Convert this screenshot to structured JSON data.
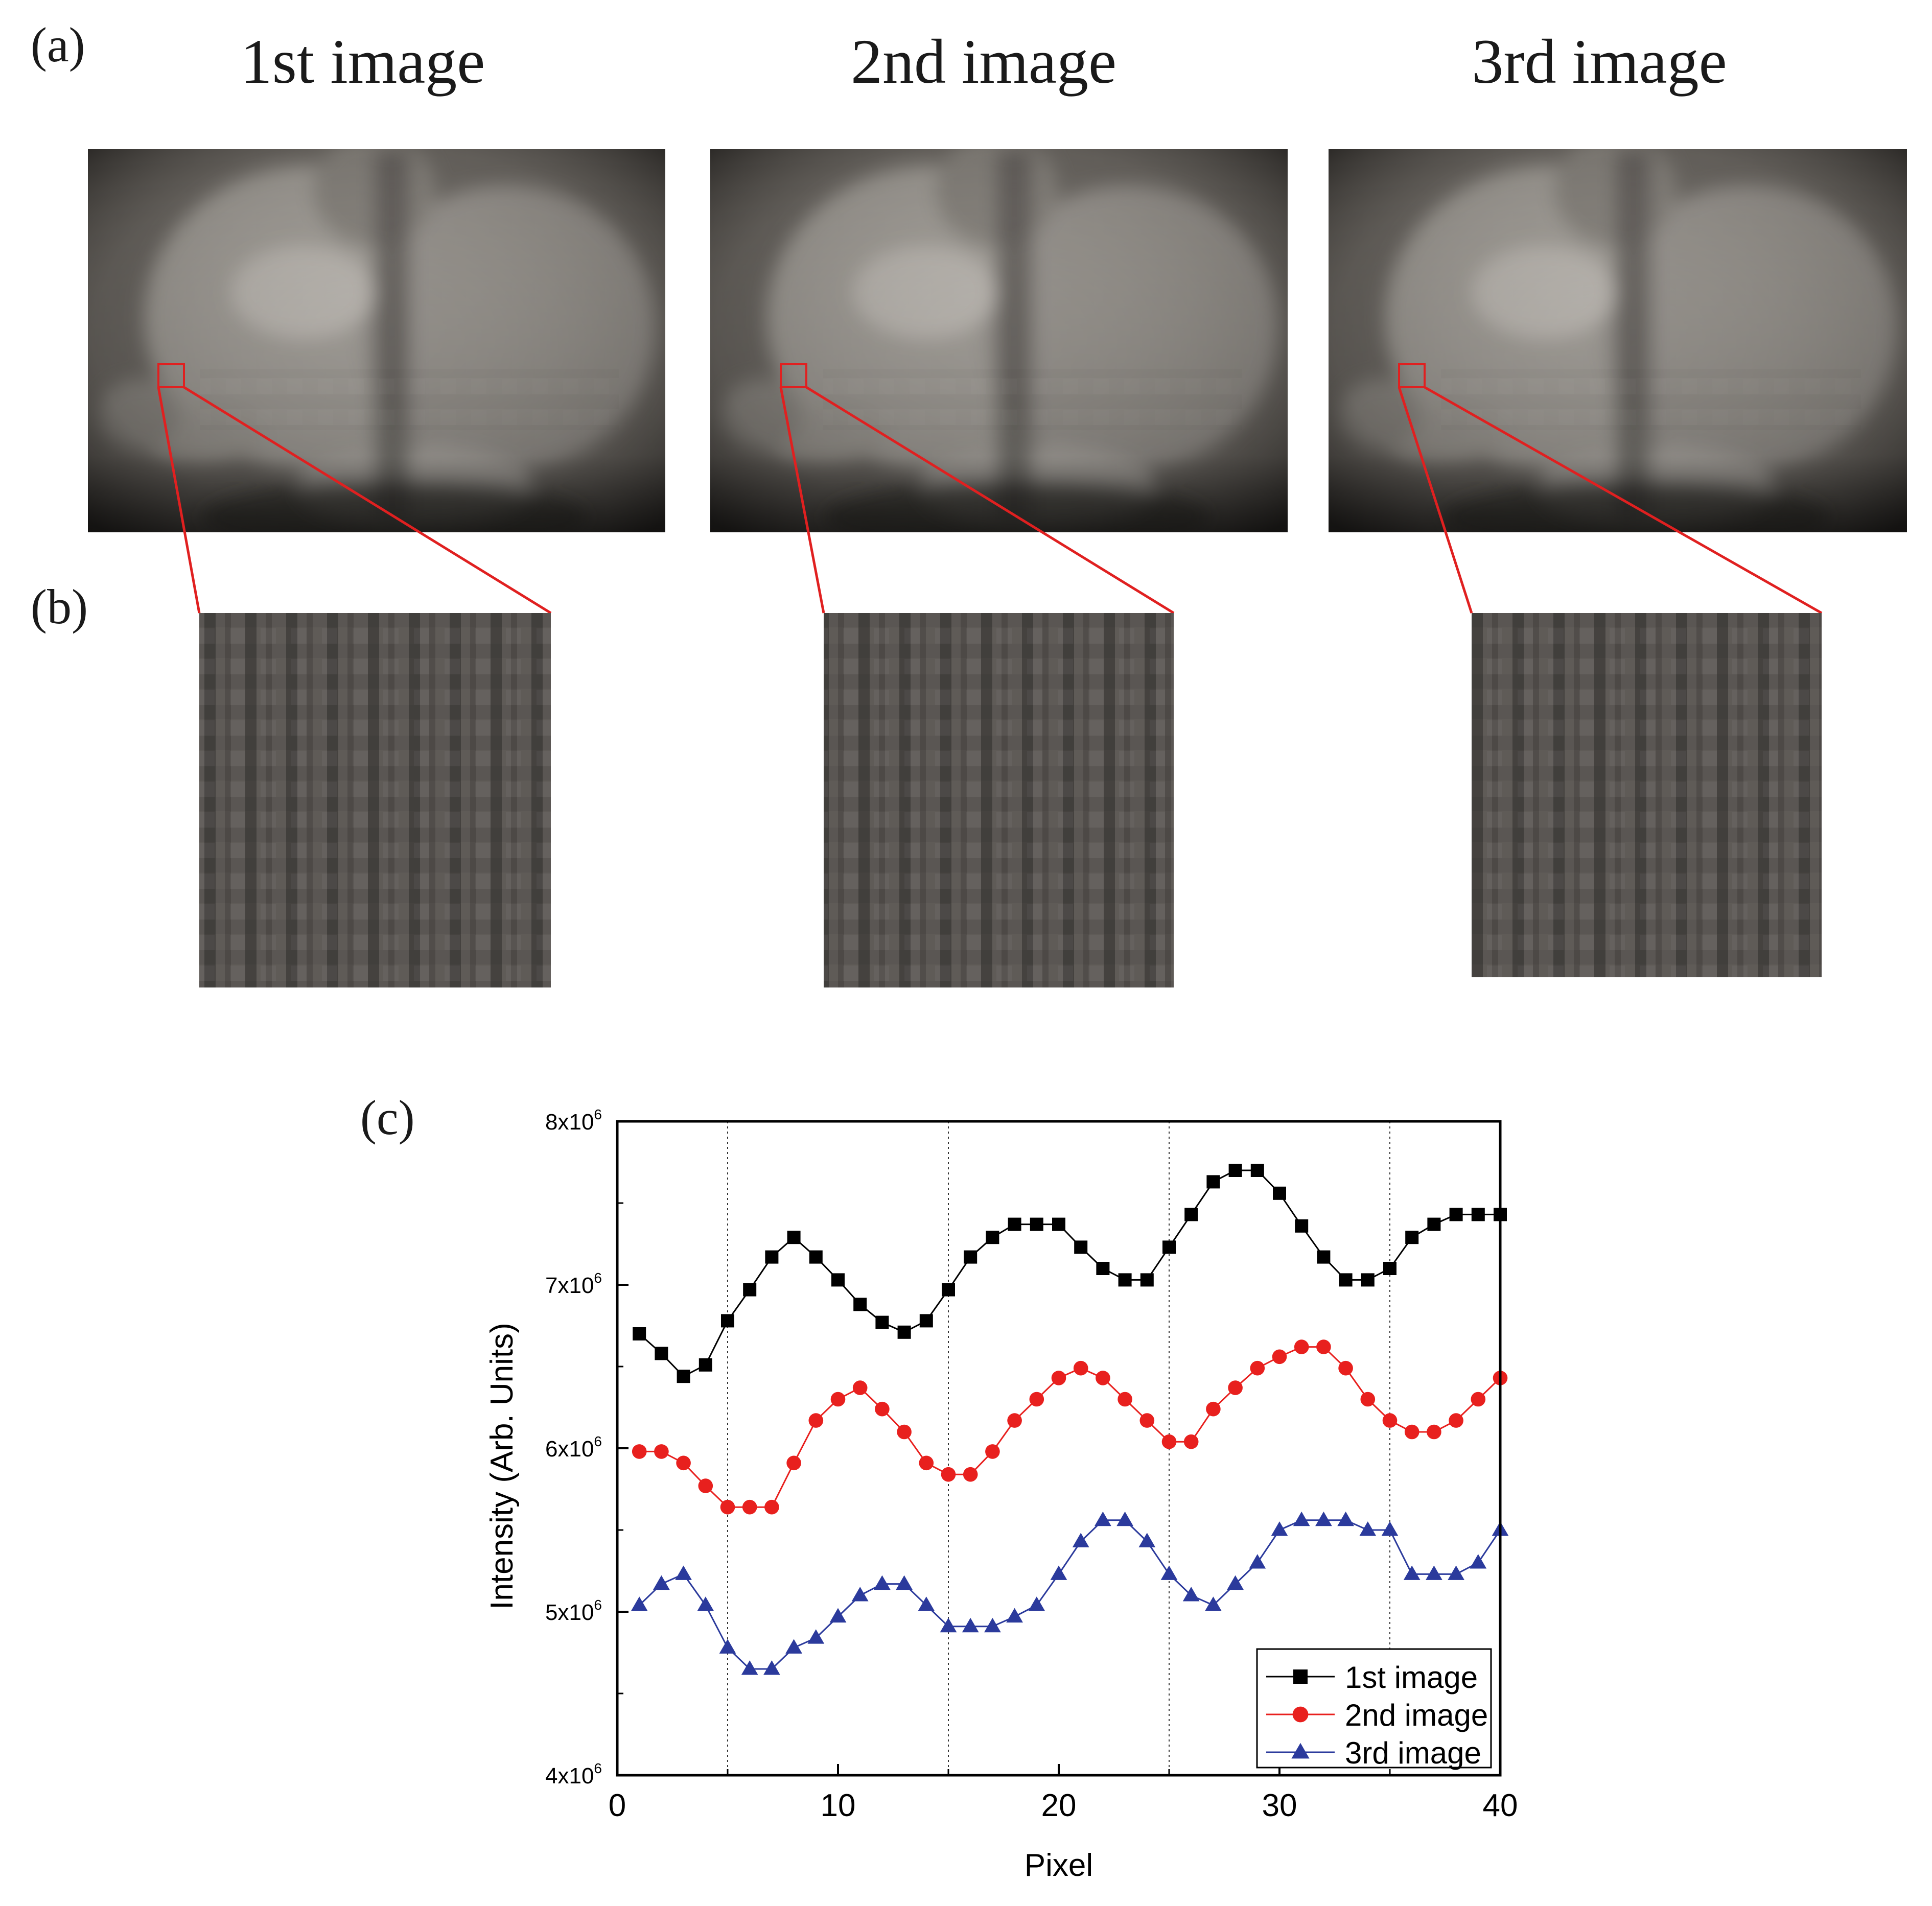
{
  "panels": {
    "a": {
      "label": "(a)",
      "titles": [
        "1st image",
        "2nd image",
        "3rd image"
      ]
    },
    "b": {
      "label": "(b)"
    },
    "c": {
      "label": "(c)"
    }
  },
  "chart_data": {
    "type": "line",
    "title": "",
    "xlabel": "Pixel",
    "ylabel": "Intensity (Arb. Units)",
    "xlim": [
      0,
      40
    ],
    "ylim": [
      4000000,
      8000000
    ],
    "x_ticks": [
      0,
      10,
      20,
      30,
      40
    ],
    "y_ticks": [
      {
        "value": 4000000,
        "base": "4x10",
        "exp": "6"
      },
      {
        "value": 5000000,
        "base": "5x10",
        "exp": "6"
      },
      {
        "value": 6000000,
        "base": "6x10",
        "exp": "6"
      },
      {
        "value": 7000000,
        "base": "7x10",
        "exp": "6"
      },
      {
        "value": 8000000,
        "base": "8x10",
        "exp": "6"
      }
    ],
    "vertical_guides": [
      5,
      15,
      25,
      35
    ],
    "grid": false,
    "legend_position": "bottom-right",
    "x": [
      1,
      2,
      3,
      4,
      5,
      6,
      7,
      8,
      9,
      10,
      11,
      12,
      13,
      14,
      15,
      16,
      17,
      18,
      19,
      20,
      21,
      22,
      23,
      24,
      25,
      26,
      27,
      28,
      29,
      30,
      31,
      32,
      33,
      34,
      35,
      36,
      37,
      38,
      39,
      40
    ],
    "series": [
      {
        "name": "1st image",
        "marker": "square",
        "color": "#000000",
        "values": [
          6700000,
          6580000,
          6440000,
          6510000,
          6780000,
          6970000,
          7170000,
          7290000,
          7170000,
          7030000,
          6880000,
          6770000,
          6710000,
          6780000,
          6970000,
          7170000,
          7290000,
          7370000,
          7370000,
          7370000,
          7230000,
          7100000,
          7030000,
          7030000,
          7230000,
          7430000,
          7630000,
          7700000,
          7700000,
          7560000,
          7360000,
          7170000,
          7030000,
          7030000,
          7100000,
          7290000,
          7370000,
          7430000,
          7430000,
          7430000
        ]
      },
      {
        "name": "2nd image",
        "marker": "circle",
        "color": "#e8201e",
        "values": [
          5980000,
          5980000,
          5910000,
          5770000,
          5640000,
          5640000,
          5640000,
          5910000,
          6170000,
          6300000,
          6370000,
          6240000,
          6100000,
          5910000,
          5840000,
          5840000,
          5980000,
          6170000,
          6300000,
          6430000,
          6490000,
          6430000,
          6300000,
          6170000,
          6040000,
          6040000,
          6240000,
          6370000,
          6490000,
          6560000,
          6620000,
          6620000,
          6490000,
          6300000,
          6170000,
          6100000,
          6100000,
          6170000,
          6300000,
          6430000
        ]
      },
      {
        "name": "3rd image",
        "marker": "triangle",
        "color": "#2b3a9c",
        "values": [
          5040000,
          5170000,
          5230000,
          5040000,
          4780000,
          4650000,
          4650000,
          4780000,
          4840000,
          4970000,
          5100000,
          5170000,
          5170000,
          5040000,
          4910000,
          4910000,
          4910000,
          4970000,
          5040000,
          5230000,
          5430000,
          5560000,
          5560000,
          5430000,
          5230000,
          5100000,
          5040000,
          5170000,
          5300000,
          5500000,
          5560000,
          5560000,
          5560000,
          5500000,
          5500000,
          5230000,
          5230000,
          5230000,
          5300000,
          5500000
        ]
      }
    ]
  }
}
